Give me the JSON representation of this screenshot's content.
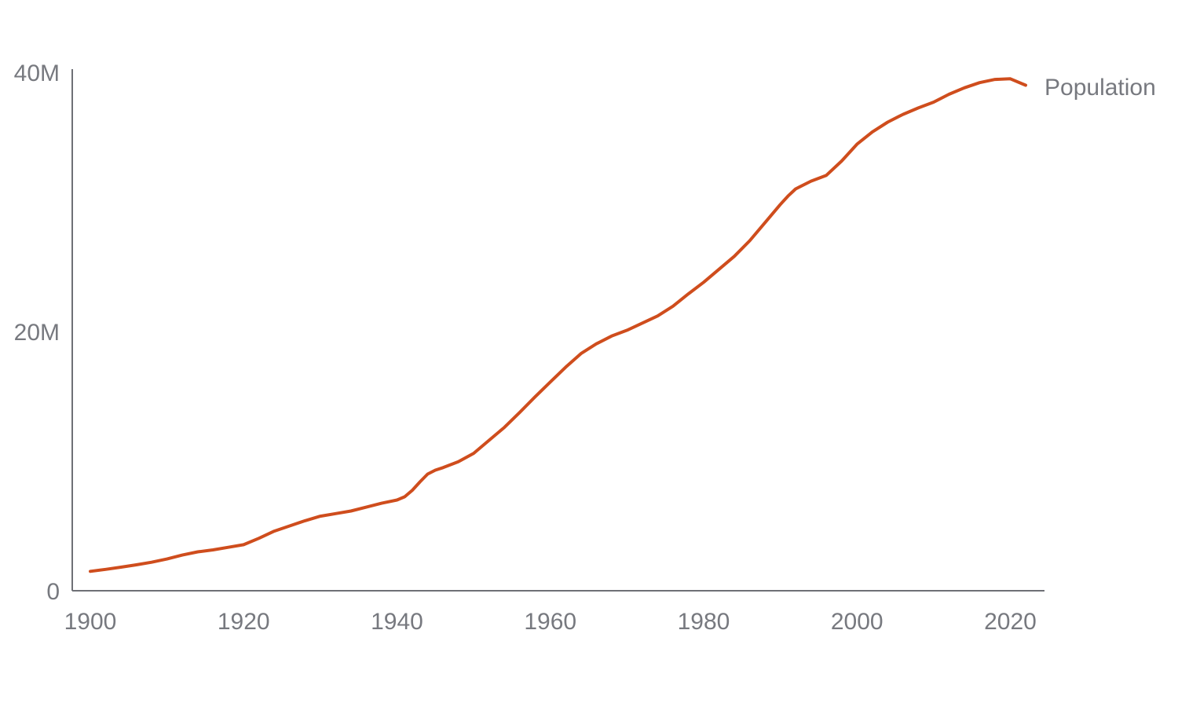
{
  "chart_data": {
    "type": "line",
    "title": "",
    "xlabel": "",
    "ylabel": "",
    "xlim": [
      1900,
      2022
    ],
    "ylim": [
      0,
      40000000
    ],
    "grid": false,
    "legend": "none",
    "x_ticks": [
      {
        "value": 1900,
        "label": "1900"
      },
      {
        "value": 1920,
        "label": "1920"
      },
      {
        "value": 1940,
        "label": "1940"
      },
      {
        "value": 1960,
        "label": "1960"
      },
      {
        "value": 1980,
        "label": "1980"
      },
      {
        "value": 2000,
        "label": "2000"
      },
      {
        "value": 2020,
        "label": "2020"
      }
    ],
    "y_ticks": [
      {
        "value": 0,
        "label": "0"
      },
      {
        "value": 20000000,
        "label": "20M"
      },
      {
        "value": 40000000,
        "label": "40M"
      }
    ],
    "series": [
      {
        "name": "Population",
        "color": "#cf4d1d",
        "x": [
          1900,
          1902,
          1904,
          1906,
          1908,
          1910,
          1912,
          1914,
          1916,
          1918,
          1920,
          1922,
          1924,
          1926,
          1928,
          1930,
          1932,
          1934,
          1936,
          1938,
          1940,
          1941,
          1942,
          1943,
          1944,
          1945,
          1946,
          1948,
          1950,
          1952,
          1954,
          1956,
          1958,
          1960,
          1962,
          1964,
          1966,
          1968,
          1970,
          1972,
          1974,
          1976,
          1978,
          1980,
          1982,
          1984,
          1986,
          1988,
          1990,
          1991,
          1992,
          1994,
          1996,
          1998,
          2000,
          2002,
          2004,
          2006,
          2008,
          2010,
          2012,
          2014,
          2016,
          2018,
          2020,
          2022
        ],
        "y": [
          1500000,
          1650000,
          1820000,
          2000000,
          2200000,
          2450000,
          2750000,
          3000000,
          3150000,
          3350000,
          3550000,
          4050000,
          4600000,
          5000000,
          5400000,
          5750000,
          5950000,
          6150000,
          6450000,
          6750000,
          7000000,
          7250000,
          7750000,
          8400000,
          9000000,
          9300000,
          9500000,
          9950000,
          10600000,
          11600000,
          12600000,
          13750000,
          14950000,
          16100000,
          17250000,
          18300000,
          19050000,
          19650000,
          20100000,
          20650000,
          21200000,
          21950000,
          22900000,
          23800000,
          24800000,
          25800000,
          27000000,
          28400000,
          29800000,
          30450000,
          31000000,
          31600000,
          32050000,
          33150000,
          34450000,
          35400000,
          36150000,
          36750000,
          37250000,
          37700000,
          38300000,
          38800000,
          39200000,
          39450000,
          39500000,
          39000000
        ]
      }
    ]
  }
}
